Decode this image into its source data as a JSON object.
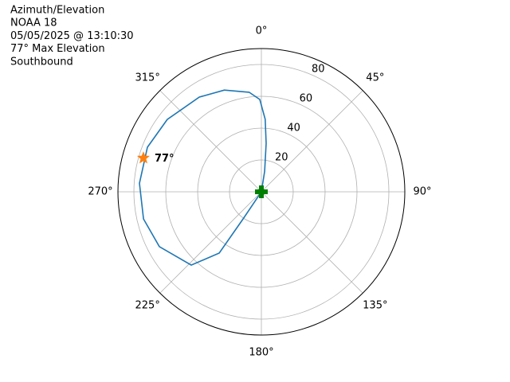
{
  "chart_data": {
    "type": "polar",
    "text_lines": [
      "Azimuth/Elevation",
      "NOAA 18",
      "05/05/2025 @ 13:10:30",
      "77° Max Elevation",
      "Southbound"
    ],
    "rlim": [
      0,
      90
    ],
    "rticks": [
      20,
      40,
      60,
      80
    ],
    "thetaticks": [
      {
        "value": 0,
        "label": "0°"
      },
      {
        "value": 45,
        "label": "45°"
      },
      {
        "value": 90,
        "label": "90°"
      },
      {
        "value": 135,
        "label": "135°"
      },
      {
        "value": 180,
        "label": "180°"
      },
      {
        "value": 225,
        "label": "225°"
      },
      {
        "value": 270,
        "label": "270°"
      },
      {
        "value": 315,
        "label": "315°"
      }
    ],
    "grid": true,
    "series": [
      {
        "color": "#1f77b4",
        "theta": [
          0,
          9,
          5.6,
          3,
          359,
          353,
          340,
          326.8,
          307.6,
          291.4,
          274,
          257,
          241.7,
          223.7,
          214.5,
          214,
          214
        ],
        "r": [
          0,
          13,
          30.6,
          45.6,
          58,
          63,
          68,
          71.1,
          74.5,
          76.8,
          76.7,
          75.9,
          72.7,
          63.7,
          46.7,
          20.5,
          0
        ]
      }
    ],
    "max_point": {
      "theta": 286,
      "r": 77,
      "label": "77°",
      "color": "#ff7f0e"
    },
    "current_point": {
      "theta": 0,
      "r": 0,
      "color": "#008000"
    }
  }
}
